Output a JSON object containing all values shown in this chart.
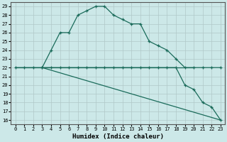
{
  "xlabel": "Humidex (Indice chaleur)",
  "bg_color": "#cce8e8",
  "grid_color": "#b0c8c8",
  "line_color": "#1a6b5a",
  "x_ticks": [
    0,
    1,
    2,
    3,
    4,
    5,
    6,
    7,
    8,
    9,
    10,
    11,
    12,
    13,
    14,
    15,
    16,
    17,
    18,
    19,
    20,
    21,
    22,
    23
  ],
  "ylim": [
    15.5,
    29.5
  ],
  "xlim": [
    -0.5,
    23.5
  ],
  "line1": {
    "x": [
      0,
      1,
      2,
      3,
      4,
      5,
      6,
      7,
      8,
      9,
      10,
      11,
      12,
      13,
      14,
      15,
      16,
      17,
      18,
      19,
      20,
      21,
      22,
      23
    ],
    "y": [
      22,
      22,
      22,
      22,
      24,
      26,
      26,
      28,
      28.5,
      29,
      29,
      28,
      27.5,
      27,
      27,
      25,
      24.5,
      24,
      23,
      22,
      22,
      22,
      22,
      22
    ]
  },
  "line2": {
    "x": [
      0,
      20
    ],
    "y": [
      22,
      22
    ]
  },
  "line3": {
    "x": [
      3,
      4,
      5,
      6,
      7,
      8,
      9,
      10,
      11,
      12,
      13,
      14,
      15,
      16,
      17,
      18,
      19,
      20,
      21,
      22,
      23
    ],
    "y": [
      22,
      22,
      22,
      22,
      22,
      22,
      22,
      22,
      22,
      22,
      22,
      22,
      22,
      22,
      22,
      22,
      20,
      19.5,
      18,
      17.5,
      16
    ]
  },
  "line4": {
    "x": [
      3,
      23
    ],
    "y": [
      22,
      16
    ]
  }
}
